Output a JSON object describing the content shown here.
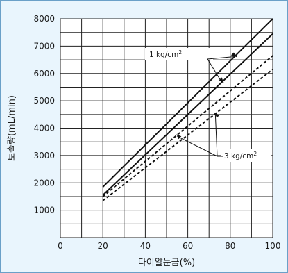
{
  "chart_data": {
    "type": "line",
    "title": "",
    "xlabel": "다이알눈금(%)",
    "ylabel": "토출량(mL/min)",
    "xlim": [
      0,
      100
    ],
    "ylim": [
      0,
      8000
    ],
    "x_ticks": [
      0,
      20,
      40,
      60,
      80,
      100
    ],
    "y_ticks": [
      1000,
      2000,
      3000,
      4000,
      5000,
      6000,
      7000,
      8000
    ],
    "grid": true,
    "series": [
      {
        "group": "1 kg/cm²",
        "style": "solid",
        "x": [
          20,
          100
        ],
        "y": [
          1850,
          8000
        ]
      },
      {
        "group": "1 kg/cm²",
        "style": "solid",
        "x": [
          20,
          100
        ],
        "y": [
          1550,
          7450
        ]
      },
      {
        "group": "3 kg/cm²",
        "style": "dashed",
        "x": [
          20,
          100
        ],
        "y": [
          1500,
          6650
        ]
      },
      {
        "group": "3 kg/cm²",
        "style": "dashed",
        "x": [
          20,
          100
        ],
        "y": [
          1350,
          6150
        ]
      }
    ],
    "annotations": [
      {
        "label": "1 kg/cm",
        "sup": "2"
      },
      {
        "label": "3 kg/cm",
        "sup": "2"
      }
    ]
  },
  "colors": {
    "background": "#e9f5fd",
    "plot": "#ffffff",
    "line": "#111111",
    "border": "#6aa0c8"
  }
}
